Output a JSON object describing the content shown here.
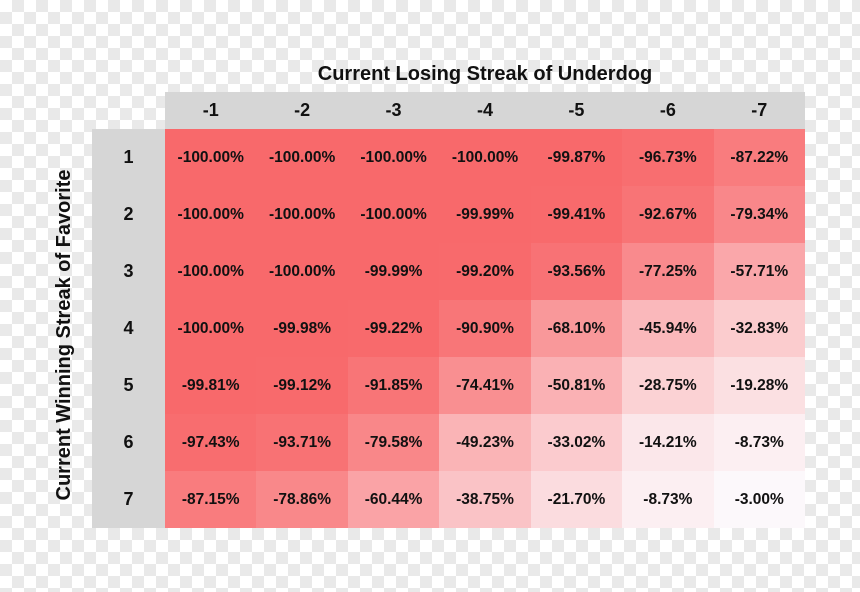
{
  "chart_data": {
    "type": "heatmap",
    "xlabel": "Current Losing Streak of Underdog",
    "ylabel": "Current Winning Streak of Favorite",
    "x_categories": [
      "-1",
      "-2",
      "-3",
      "-4",
      "-5",
      "-6",
      "-7"
    ],
    "y_categories": [
      "1",
      "2",
      "3",
      "4",
      "5",
      "6",
      "7"
    ],
    "value_labels": [
      [
        "-100.00%",
        "-100.00%",
        "-100.00%",
        "-100.00%",
        "-99.87%",
        "-96.73%",
        "-87.22%"
      ],
      [
        "-100.00%",
        "-100.00%",
        "-100.00%",
        "-99.99%",
        "-99.41%",
        "-92.67%",
        "-79.34%"
      ],
      [
        "-100.00%",
        "-100.00%",
        "-99.99%",
        "-99.20%",
        "-93.56%",
        "-77.25%",
        "-57.71%"
      ],
      [
        "-100.00%",
        "-99.98%",
        "-99.22%",
        "-90.90%",
        "-68.10%",
        "-45.94%",
        "-32.83%"
      ],
      [
        "-99.81%",
        "-99.12%",
        "-91.85%",
        "-74.41%",
        "-50.81%",
        "-28.75%",
        "-19.28%"
      ],
      [
        "-97.43%",
        "-93.71%",
        "-79.58%",
        "-49.23%",
        "-33.02%",
        "-14.21%",
        "-8.73%"
      ],
      [
        "-87.15%",
        "-78.86%",
        "-60.44%",
        "-38.75%",
        "-21.70%",
        "-8.73%",
        "-3.00%"
      ]
    ],
    "values": [
      [
        -100.0,
        -100.0,
        -100.0,
        -100.0,
        -99.87,
        -96.73,
        -87.22
      ],
      [
        -100.0,
        -100.0,
        -100.0,
        -99.99,
        -99.41,
        -92.67,
        -79.34
      ],
      [
        -100.0,
        -100.0,
        -99.99,
        -99.2,
        -93.56,
        -77.25,
        -57.71
      ],
      [
        -100.0,
        -99.98,
        -99.22,
        -90.9,
        -68.1,
        -45.94,
        -32.83
      ],
      [
        -99.81,
        -99.12,
        -91.85,
        -74.41,
        -50.81,
        -28.75,
        -19.28
      ],
      [
        -97.43,
        -93.71,
        -79.58,
        -49.23,
        -33.02,
        -14.21,
        -8.73
      ],
      [
        -87.15,
        -78.86,
        -60.44,
        -38.75,
        -21.7,
        -8.73,
        -3.0
      ]
    ],
    "color_scale": {
      "min": -100,
      "max": 0,
      "min_color": "#f8696b",
      "max_color": "#fcfcff"
    }
  }
}
